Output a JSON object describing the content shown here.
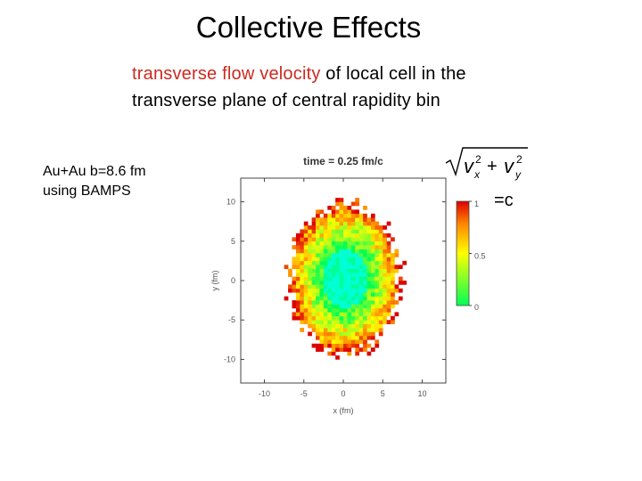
{
  "slide": {
    "title": "Collective Effects",
    "subtitle_highlight": "transverse flow velocity",
    "subtitle_rest_line1": " of local cell in the",
    "subtitle_line2": "transverse plane of central rapidity bin",
    "note_line1": "Au+Au b=8.6 fm",
    "note_line2": "using BAMPS",
    "colorbar_equals": "=c"
  },
  "chart_data": {
    "type": "heatmap",
    "title": "time = 0.25 fm/c",
    "xlabel": "x (fm)",
    "ylabel": "y (fm)",
    "xlim": [
      -13,
      13
    ],
    "ylim": [
      -13,
      13
    ],
    "x_ticks": [
      -10,
      -5,
      0,
      5,
      10
    ],
    "y_ticks": [
      -10,
      -5,
      0,
      5,
      10
    ],
    "x_tick_labels": [
      "-10",
      "-5",
      "0",
      "5",
      "10"
    ],
    "y_tick_labels": [
      "-10",
      "-5",
      "0",
      "5",
      "10"
    ],
    "colorbar": {
      "min": 0,
      "max": 1,
      "ticks": [
        1,
        0.5,
        0
      ],
      "tick_labels": [
        "1",
        "0.5",
        "0"
      ],
      "colors": [
        "#00ff55",
        "#ffff00",
        "#ff8800",
        "#dd0000"
      ]
    },
    "region": {
      "shape": "ellipse",
      "center": [
        0,
        0
      ],
      "semi_axis_x": 7.2,
      "semi_axis_y": 9.8,
      "value_at_center": 0.0,
      "value_at_edge": 1.0
    }
  },
  "colors": {
    "highlight": "#cc2a20",
    "axis": "#444444",
    "tick_text": "#555555"
  }
}
